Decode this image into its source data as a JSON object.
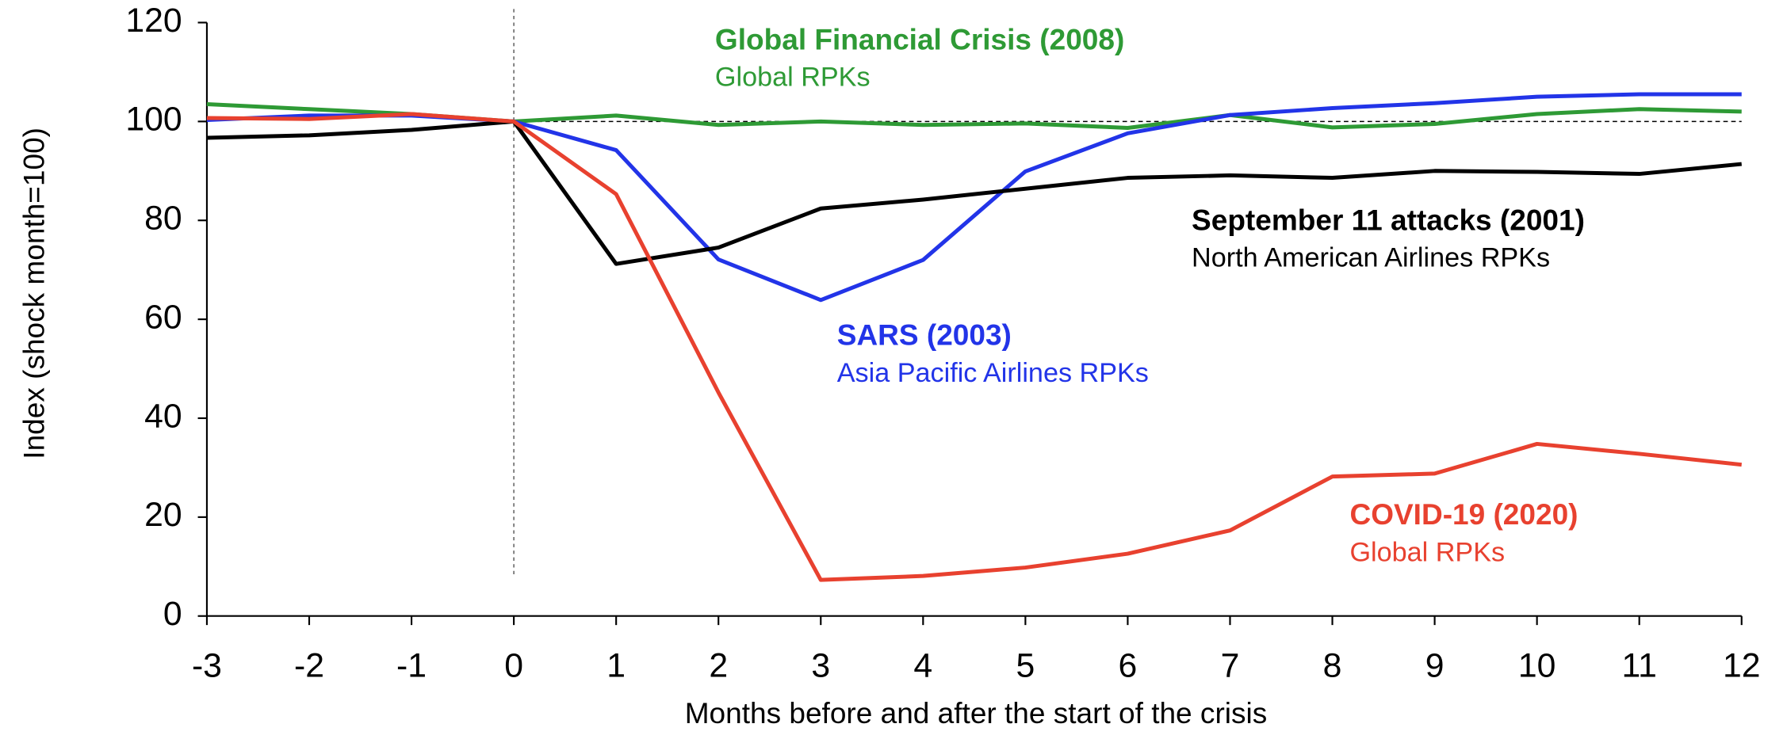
{
  "chart_data": {
    "type": "line",
    "x_label": "Months before and after the start of the crisis",
    "y_label": "Index (shock month=100)",
    "x": [
      -3,
      -2,
      -1,
      0,
      1,
      2,
      3,
      4,
      5,
      6,
      7,
      8,
      9,
      10,
      11,
      12
    ],
    "series": [
      {
        "name": "Global Financial Crisis (2008)",
        "subtitle": "Global RPKs",
        "color": "#2e9a35",
        "values": [
          103.5,
          102.5,
          101.5,
          100,
          101.2,
          99.3,
          100,
          99.3,
          99.6,
          98.7,
          101.3,
          98.8,
          99.5,
          101.5,
          102.5,
          102
        ]
      },
      {
        "name": "SARS (2003)",
        "subtitle": "Asia Pacific Airlines RPKs",
        "color": "#2234e8",
        "values": [
          100.3,
          101.2,
          101.2,
          100,
          94.2,
          72.1,
          63.9,
          72,
          89.9,
          97.6,
          101.3,
          102.7,
          103.7,
          105,
          105.5,
          105.5
        ]
      },
      {
        "name": "September 11 attacks (2001)",
        "subtitle": "North American Airlines RPKs",
        "color": "#000000",
        "values": [
          96.7,
          97.2,
          98.3,
          100,
          71.2,
          74.5,
          82.4,
          84.2,
          86.4,
          88.6,
          89.1,
          88.6,
          90,
          89.8,
          89.4,
          91.4
        ]
      },
      {
        "name": "COVID-19 (2020)",
        "subtitle": "Global RPKs",
        "color": "#e8412f",
        "values": [
          100.7,
          100.5,
          101.5,
          100,
          85.3,
          45.2,
          7.3,
          8.1,
          9.8,
          12.6,
          17.3,
          28.2,
          28.8,
          34.8,
          32.8,
          30.6
        ]
      }
    ],
    "xlim": [
      -3,
      12
    ],
    "xticks": [
      -3,
      -2,
      -1,
      0,
      1,
      2,
      3,
      4,
      5,
      6,
      7,
      8,
      9,
      10,
      11,
      12
    ],
    "ylim": [
      0,
      120
    ],
    "yticks": [
      0,
      20,
      40,
      60,
      80,
      100,
      120
    ],
    "reference_y": 100,
    "reference_x": 0
  }
}
